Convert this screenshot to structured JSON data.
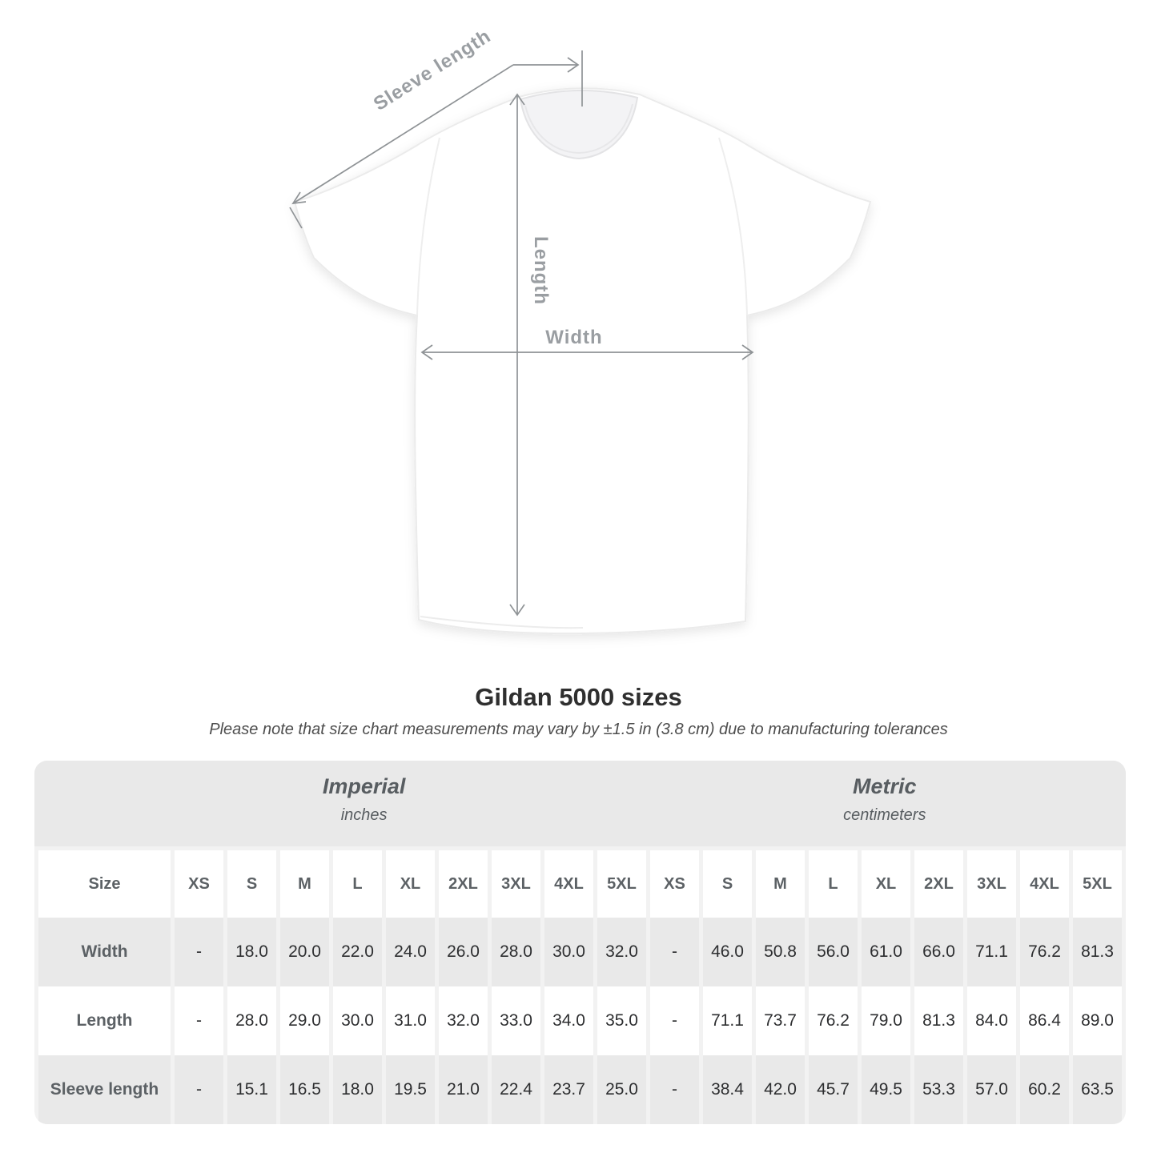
{
  "diagram": {
    "labels": {
      "sleeve": "Sleeve length",
      "length": "Length",
      "width": "Width"
    }
  },
  "title": "Gildan 5000 sizes",
  "subtitle": "Please note that size chart measurements may vary by ±1.5 in (3.8 cm) due to manufacturing tolerances",
  "table": {
    "size_header": "Size",
    "groups": [
      {
        "label": "Imperial",
        "sublabel": "inches"
      },
      {
        "label": "Metric",
        "sublabel": "centimeters"
      }
    ],
    "sizes": [
      "XS",
      "S",
      "M",
      "L",
      "XL",
      "2XL",
      "3XL",
      "4XL",
      "5XL"
    ],
    "rows": [
      {
        "label": "Width",
        "imperial": [
          "-",
          "18.0",
          "20.0",
          "22.0",
          "24.0",
          "26.0",
          "28.0",
          "30.0",
          "32.0"
        ],
        "metric": [
          "-",
          "46.0",
          "50.8",
          "56.0",
          "61.0",
          "66.0",
          "71.1",
          "76.2",
          "81.3"
        ]
      },
      {
        "label": "Length",
        "imperial": [
          "-",
          "28.0",
          "29.0",
          "30.0",
          "31.0",
          "32.0",
          "33.0",
          "34.0",
          "35.0"
        ],
        "metric": [
          "-",
          "71.1",
          "73.7",
          "76.2",
          "79.0",
          "81.3",
          "84.0",
          "86.4",
          "89.0"
        ]
      },
      {
        "label": "Sleeve length",
        "imperial": [
          "-",
          "15.1",
          "16.5",
          "18.0",
          "19.5",
          "21.0",
          "22.4",
          "23.7",
          "25.0"
        ],
        "metric": [
          "-",
          "38.4",
          "42.0",
          "45.7",
          "49.5",
          "53.3",
          "57.0",
          "60.2",
          "63.5"
        ]
      }
    ]
  },
  "colors": {
    "band_gray": "#e9e9e9",
    "gutter_gray": "#f2f2f2",
    "annotation_gray": "#8f9396",
    "label_gray": "#9a9ea2",
    "value_text": "#2d2e30",
    "header_text": "#5c6165"
  },
  "chart_data": {
    "type": "table",
    "title": "Gildan 5000 sizes",
    "note": "Please note that size chart measurements may vary by ±1.5 in (3.8 cm) due to manufacturing tolerances",
    "unit_groups": [
      {
        "name": "Imperial",
        "unit": "inches"
      },
      {
        "name": "Metric",
        "unit": "centimeters"
      }
    ],
    "columns": [
      "XS",
      "S",
      "M",
      "L",
      "XL",
      "2XL",
      "3XL",
      "4XL",
      "5XL"
    ],
    "rows": [
      {
        "measure": "Width",
        "imperial_in": [
          null,
          18.0,
          20.0,
          22.0,
          24.0,
          26.0,
          28.0,
          30.0,
          32.0
        ],
        "metric_cm": [
          null,
          46.0,
          50.8,
          56.0,
          61.0,
          66.0,
          71.1,
          76.2,
          81.3
        ]
      },
      {
        "measure": "Length",
        "imperial_in": [
          null,
          28.0,
          29.0,
          30.0,
          31.0,
          32.0,
          33.0,
          34.0,
          35.0
        ],
        "metric_cm": [
          null,
          71.1,
          73.7,
          76.2,
          79.0,
          81.3,
          84.0,
          86.4,
          89.0
        ]
      },
      {
        "measure": "Sleeve length",
        "imperial_in": [
          null,
          15.1,
          16.5,
          18.0,
          19.5,
          21.0,
          22.4,
          23.7,
          25.0
        ],
        "metric_cm": [
          null,
          38.4,
          42.0,
          45.7,
          49.5,
          53.3,
          57.0,
          60.2,
          63.5
        ]
      }
    ]
  }
}
